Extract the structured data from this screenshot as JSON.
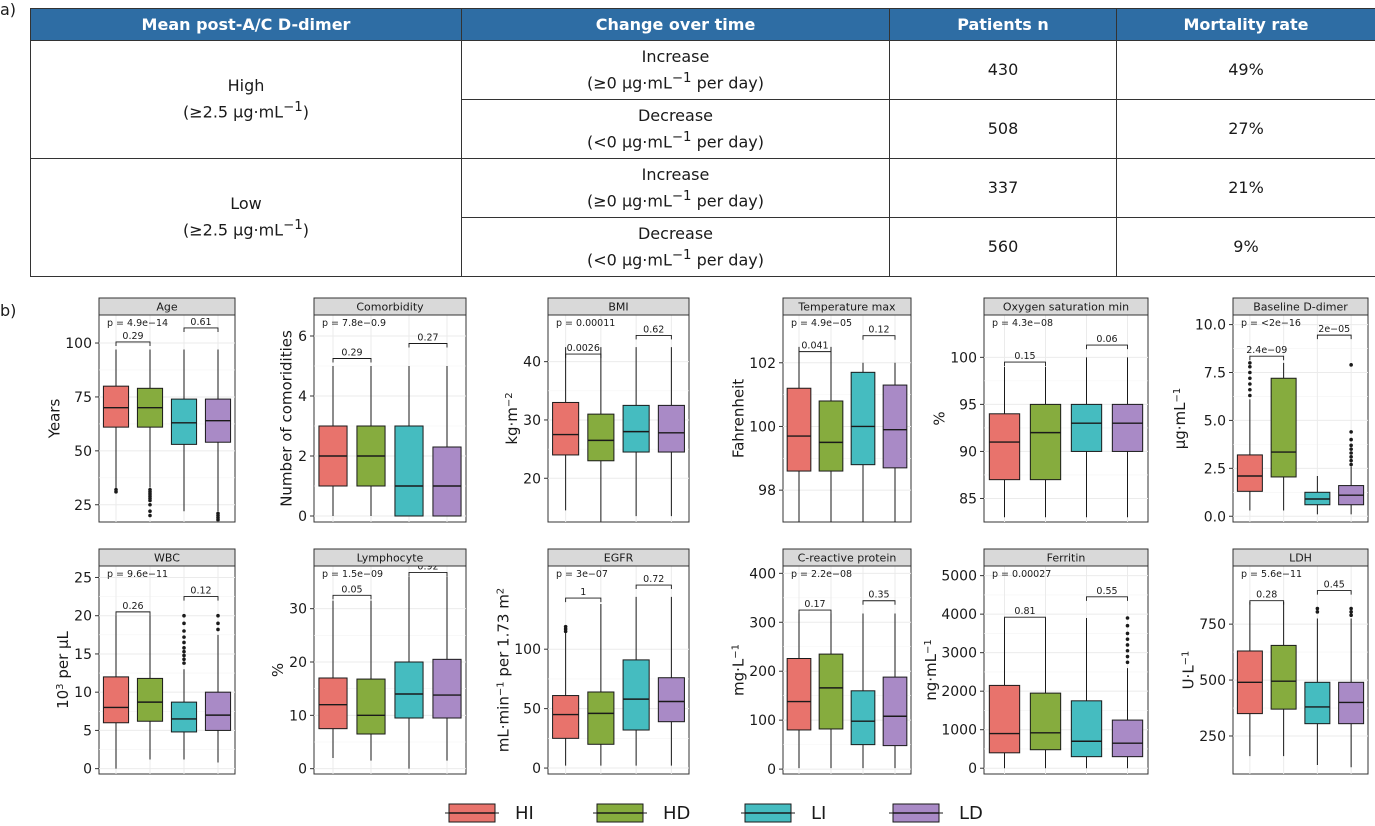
{
  "labels": {
    "panel_a": "a)",
    "panel_b": "b)"
  },
  "table": {
    "headers": [
      "Mean post-A/C D-dimer",
      "Change over time",
      "Patients n",
      "Mortality rate"
    ],
    "rows": [
      {
        "group": "High",
        "group_sub": "(≥2.5 μg·mL",
        "change": "Increase",
        "change_sub": "(≥0 μg·mL",
        "change_tail": "per day)",
        "n": "430",
        "mortality": "49%"
      },
      {
        "group": "",
        "group_sub": "",
        "change": "Decrease",
        "change_sub": "(<0 μg·mL",
        "change_tail": "per day)",
        "n": "508",
        "mortality": "27%"
      },
      {
        "group": "Low",
        "group_sub": "(≥2.5 μg·mL",
        "change": "Increase",
        "change_sub": "(≥0 μg·mL",
        "change_tail": "per day)",
        "n": "337",
        "mortality": "21%"
      },
      {
        "group": "",
        "group_sub": "",
        "change": "Decrease",
        "change_sub": "(<0 μg·mL",
        "change_tail": "per day)",
        "n": "560",
        "mortality": "9%"
      }
    ],
    "superscript": "−1"
  },
  "colors": {
    "HI": "#e8736c",
    "HD": "#86ac3e",
    "LI": "#45bcc0",
    "LD": "#a98ac6"
  },
  "chart_data": [
    {
      "type": "box",
      "title": "Age",
      "ylabel": "Years",
      "ylim": [
        17,
        113
      ],
      "ticks": [
        25,
        50,
        75,
        100
      ],
      "boxes": [
        {
          "group": "HI",
          "q1": 61,
          "median": 70,
          "q3": 80,
          "lo": 32,
          "hi": 97,
          "outliers": [
            31,
            32
          ]
        },
        {
          "group": "HD",
          "q1": 61,
          "median": 70,
          "q3": 79,
          "lo": 33,
          "hi": 97,
          "outliers": [
            20,
            22,
            25,
            27,
            28,
            29,
            30,
            31,
            32
          ]
        },
        {
          "group": "LI",
          "q1": 53,
          "median": 63,
          "q3": 74,
          "lo": 22,
          "hi": 97,
          "outliers": []
        },
        {
          "group": "LD",
          "q1": 54,
          "median": 64,
          "q3": 74,
          "lo": 22,
          "hi": 97,
          "outliers": [
            18,
            19,
            20,
            21
          ]
        }
      ],
      "brackets": [
        {
          "label": "p = 4.9e−14",
          "pos": "top"
        },
        {
          "label": "0.29",
          "from": 0,
          "to": 1,
          "y": 100.5
        },
        {
          "label": "0.61",
          "from": 2,
          "to": 3,
          "y": 107
        }
      ]
    },
    {
      "type": "box",
      "title": "Comorbidity",
      "ylabel": "Number of comoridities",
      "ylim": [
        -0.2,
        6.7
      ],
      "ticks": [
        0,
        2,
        4,
        6
      ],
      "boxes": [
        {
          "group": "HI",
          "q1": 1,
          "median": 2,
          "q3": 3,
          "lo": 0,
          "hi": 5,
          "outliers": []
        },
        {
          "group": "HD",
          "q1": 1,
          "median": 2,
          "q3": 3,
          "lo": 0,
          "hi": 5,
          "outliers": []
        },
        {
          "group": "LI",
          "q1": 0,
          "median": 1,
          "q3": 3,
          "lo": 0,
          "hi": 5,
          "outliers": []
        },
        {
          "group": "LD",
          "q1": 0,
          "median": 1,
          "q3": 2.3,
          "lo": 0,
          "hi": 5,
          "outliers": []
        }
      ],
      "brackets": [
        {
          "label": "p = 7.8e−0.9",
          "pos": "top"
        },
        {
          "label": "0.29",
          "from": 0,
          "to": 1,
          "y": 5.25
        },
        {
          "label": "0.27",
          "from": 2,
          "to": 3,
          "y": 5.75
        }
      ]
    },
    {
      "type": "box",
      "title": "BMI",
      "ylabel": "kg·m",
      "ysup": "−2",
      "ylim": [
        12.5,
        48
      ],
      "ticks": [
        20,
        30,
        40
      ],
      "boxes": [
        {
          "group": "HI",
          "q1": 24,
          "median": 27.5,
          "q3": 33,
          "lo": 14.5,
          "hi": 42.5,
          "outliers": []
        },
        {
          "group": "HD",
          "q1": 23,
          "median": 26.5,
          "q3": 31,
          "lo": 12.5,
          "hi": 42.5,
          "outliers": []
        },
        {
          "group": "LI",
          "q1": 24.5,
          "median": 28,
          "q3": 32.5,
          "lo": 13.5,
          "hi": 42.5,
          "outliers": []
        },
        {
          "group": "LD",
          "q1": 24.5,
          "median": 27.8,
          "q3": 32.5,
          "lo": 13.5,
          "hi": 42.5,
          "outliers": []
        }
      ],
      "brackets": [
        {
          "label": "p = 0.00011",
          "pos": "top"
        },
        {
          "label": "0.0026",
          "from": 0,
          "to": 1,
          "y": 41.3
        },
        {
          "label": "0.62",
          "from": 2,
          "to": 3,
          "y": 44.5
        }
      ]
    },
    {
      "type": "box",
      "title": "Temperature max",
      "ylabel": "Fahrenheit",
      "ylim": [
        97,
        103.5
      ],
      "ticks": [
        98,
        100,
        102
      ],
      "boxes": [
        {
          "group": "HI",
          "q1": 98.6,
          "median": 99.7,
          "q3": 101.2,
          "lo": 97,
          "hi": 102.5,
          "outliers": []
        },
        {
          "group": "HD",
          "q1": 98.6,
          "median": 99.5,
          "q3": 100.8,
          "lo": 97,
          "hi": 102.5,
          "outliers": []
        },
        {
          "group": "LI",
          "q1": 98.8,
          "median": 100,
          "q3": 101.7,
          "lo": 97,
          "hi": 102,
          "outliers": []
        },
        {
          "group": "LD",
          "q1": 98.7,
          "median": 99.9,
          "q3": 101.3,
          "lo": 97,
          "hi": 102,
          "outliers": []
        }
      ],
      "brackets": [
        {
          "label": "p = 4.9e−05",
          "pos": "top"
        },
        {
          "label": "0.041",
          "from": 0,
          "to": 1,
          "y": 102.35
        },
        {
          "label": "0.12",
          "from": 2,
          "to": 3,
          "y": 102.85
        }
      ]
    },
    {
      "type": "box",
      "title": "Oxygen saturation min",
      "ylabel": "%",
      "ylim": [
        82.5,
        104.5
      ],
      "ticks": [
        85,
        90,
        95,
        100
      ],
      "boxes": [
        {
          "group": "HI",
          "q1": 87,
          "median": 91,
          "q3": 94,
          "lo": 83,
          "hi": 99,
          "outliers": []
        },
        {
          "group": "HD",
          "q1": 87,
          "median": 92,
          "q3": 95,
          "lo": 83,
          "hi": 99,
          "outliers": []
        },
        {
          "group": "LI",
          "q1": 90,
          "median": 93,
          "q3": 95,
          "lo": 83,
          "hi": 100,
          "outliers": []
        },
        {
          "group": "LD",
          "q1": 90,
          "median": 93,
          "q3": 95,
          "lo": 83,
          "hi": 100,
          "outliers": []
        }
      ],
      "brackets": [
        {
          "label": "p = 4.3e−08",
          "pos": "top"
        },
        {
          "label": "0.15",
          "from": 0,
          "to": 1,
          "y": 99.5
        },
        {
          "label": "0.06",
          "from": 2,
          "to": 3,
          "y": 101.3
        }
      ]
    },
    {
      "type": "box",
      "title": "Baseline D-dimer",
      "ylabel": "μg·mL",
      "ysup": "−1",
      "ylim": [
        -0.3,
        10.5
      ],
      "ticks": [
        0.0,
        2.5,
        5.0,
        7.5,
        10.0
      ],
      "tickfmt": 1,
      "boxes": [
        {
          "group": "HI",
          "q1": 1.3,
          "median": 2.1,
          "q3": 3.2,
          "lo": 0.3,
          "hi": 6.1,
          "outliers": [
            6.3,
            6.6,
            6.9,
            7.2,
            7.5,
            7.8,
            8
          ]
        },
        {
          "group": "HD",
          "q1": 2.05,
          "median": 3.35,
          "q3": 7.2,
          "lo": 0.3,
          "hi": 8,
          "outliers": []
        },
        {
          "group": "LI",
          "q1": 0.6,
          "median": 0.9,
          "q3": 1.25,
          "lo": 0.1,
          "hi": 2.1,
          "outliers": []
        },
        {
          "group": "LD",
          "q1": 0.6,
          "median": 1.1,
          "q3": 1.6,
          "lo": 0.1,
          "hi": 2.6,
          "outliers": [
            2.7,
            2.9,
            3.1,
            3.3,
            3.5,
            3.7,
            4,
            4.4,
            7.9
          ]
        }
      ],
      "brackets": [
        {
          "label": "p = <2e−16",
          "pos": "top"
        },
        {
          "label": "2.4e−09",
          "from": 0,
          "to": 1,
          "y": 8.35
        },
        {
          "label": "2e−05",
          "from": 2,
          "to": 3,
          "y": 9.45
        }
      ]
    },
    {
      "type": "box",
      "title": "WBC",
      "ylabel": "10",
      "ysup3": "3",
      "ytail": " per μL",
      "ylim": [
        -0.7,
        26.5
      ],
      "ticks": [
        0,
        5,
        10,
        15,
        20,
        25
      ],
      "boxes": [
        {
          "group": "HI",
          "q1": 6,
          "median": 8,
          "q3": 12,
          "lo": 0,
          "hi": 20,
          "outliers": []
        },
        {
          "group": "HD",
          "q1": 6.2,
          "median": 8.7,
          "q3": 11.8,
          "lo": 1.2,
          "hi": 20,
          "outliers": []
        },
        {
          "group": "LI",
          "q1": 4.8,
          "median": 6.5,
          "q3": 8.7,
          "lo": 1.2,
          "hi": 13,
          "outliers": [
            13.8,
            14.3,
            14.8,
            15.3,
            15.8,
            16.5,
            17.2,
            18,
            19,
            20
          ]
        },
        {
          "group": "LD",
          "q1": 5,
          "median": 7,
          "q3": 10,
          "lo": 0.8,
          "hi": 17.5,
          "outliers": [
            18.2,
            19,
            20
          ]
        }
      ],
      "brackets": [
        {
          "label": "p = 9.6e−11",
          "pos": "top"
        },
        {
          "label": "0.26",
          "from": 0,
          "to": 1,
          "y": 20.5
        },
        {
          "label": "0.12",
          "from": 2,
          "to": 3,
          "y": 22.5
        }
      ]
    },
    {
      "type": "box",
      "title": "Lymphocyte",
      "ylabel": "%",
      "ylim": [
        -1,
        38
      ],
      "ticks": [
        0,
        10,
        20,
        30
      ],
      "boxes": [
        {
          "group": "HI",
          "q1": 7.5,
          "median": 12,
          "q3": 17,
          "lo": 2,
          "hi": 31.5,
          "outliers": []
        },
        {
          "group": "HD",
          "q1": 6.5,
          "median": 10,
          "q3": 16.8,
          "lo": 1.5,
          "hi": 31.5,
          "outliers": []
        },
        {
          "group": "LI",
          "q1": 9.5,
          "median": 14,
          "q3": 20,
          "lo": 0,
          "hi": 36,
          "outliers": []
        },
        {
          "group": "LD",
          "q1": 9.5,
          "median": 13.8,
          "q3": 20.5,
          "lo": 1.5,
          "hi": 36,
          "outliers": []
        }
      ],
      "brackets": [
        {
          "label": "p = 1.5e−09",
          "pos": "top"
        },
        {
          "label": "0.05",
          "from": 0,
          "to": 1,
          "y": 32.5
        },
        {
          "label": "0.92",
          "from": 2,
          "to": 3,
          "y": 36.8
        }
      ]
    },
    {
      "type": "box",
      "title": "EGFR",
      "ylabel": "mL·min",
      "ysup": "−1",
      "ytail": " per 1.73 m",
      "ysup2": "2",
      "ylim": [
        -5,
        170
      ],
      "ticks": [
        0,
        50,
        100
      ],
      "boxes": [
        {
          "group": "HI",
          "q1": 25,
          "median": 45,
          "q3": 61,
          "lo": 2,
          "hi": 114,
          "outliers": [
            115,
            117,
            119
          ]
        },
        {
          "group": "HD",
          "q1": 20,
          "median": 46,
          "q3": 64,
          "lo": 2,
          "hi": 138,
          "outliers": []
        },
        {
          "group": "LI",
          "q1": 32,
          "median": 58,
          "q3": 91,
          "lo": 2,
          "hi": 144,
          "outliers": []
        },
        {
          "group": "LD",
          "q1": 39,
          "median": 56,
          "q3": 76,
          "lo": 2,
          "hi": 144,
          "outliers": []
        }
      ],
      "brackets": [
        {
          "label": "p = 3e−07",
          "pos": "top"
        },
        {
          "label": "1",
          "from": 0,
          "to": 1,
          "y": 143
        },
        {
          "label": "0.72",
          "from": 2,
          "to": 3,
          "y": 154
        }
      ]
    },
    {
      "type": "box",
      "title": "C-reactive protein",
      "ylabel": "mg·L",
      "ysup": "−1",
      "ylim": [
        -10,
        415
      ],
      "ticks": [
        0,
        100,
        200,
        300,
        400
      ],
      "boxes": [
        {
          "group": "HI",
          "q1": 80,
          "median": 138,
          "q3": 226,
          "lo": 2,
          "hi": 318,
          "outliers": []
        },
        {
          "group": "HD",
          "q1": 82,
          "median": 166,
          "q3": 235,
          "lo": 2,
          "hi": 318,
          "outliers": []
        },
        {
          "group": "LI",
          "q1": 50,
          "median": 98,
          "q3": 160,
          "lo": 2,
          "hi": 318,
          "outliers": []
        },
        {
          "group": "LD",
          "q1": 48,
          "median": 108,
          "q3": 188,
          "lo": 2,
          "hi": 318,
          "outliers": []
        }
      ],
      "brackets": [
        {
          "label": "p = 2.2e−08",
          "pos": "top"
        },
        {
          "label": "0.17",
          "from": 0,
          "to": 1,
          "y": 325
        },
        {
          "label": "0.35",
          "from": 2,
          "to": 3,
          "y": 344
        }
      ]
    },
    {
      "type": "box",
      "title": "Ferritin",
      "ylabel": "ng·mL",
      "ysup": "−1",
      "ylim": [
        -150,
        5250
      ],
      "ticks": [
        0,
        1000,
        2000,
        3000,
        4000,
        5000
      ],
      "boxes": [
        {
          "group": "HI",
          "q1": 400,
          "median": 900,
          "q3": 2150,
          "lo": 0,
          "hi": 3900,
          "outliers": []
        },
        {
          "group": "HD",
          "q1": 480,
          "median": 920,
          "q3": 1950,
          "lo": 0,
          "hi": 3900,
          "outliers": []
        },
        {
          "group": "LI",
          "q1": 300,
          "median": 700,
          "q3": 1750,
          "lo": 0,
          "hi": 3900,
          "outliers": []
        },
        {
          "group": "LD",
          "q1": 300,
          "median": 650,
          "q3": 1250,
          "lo": 0,
          "hi": 2600,
          "outliers": [
            2750,
            2900,
            3050,
            3200,
            3350,
            3500,
            3700,
            3900
          ]
        }
      ],
      "brackets": [
        {
          "label": "p = 0.00027",
          "pos": "top"
        },
        {
          "label": "0.81",
          "from": 0,
          "to": 1,
          "y": 3920
        },
        {
          "label": "0.55",
          "from": 2,
          "to": 3,
          "y": 4450
        }
      ]
    },
    {
      "type": "box",
      "title": "LDH",
      "ylabel": "U·L",
      "ysup": "−1",
      "ylim": [
        80,
        1010
      ],
      "ticks": [
        250,
        500,
        750
      ],
      "boxes": [
        {
          "group": "HI",
          "q1": 350,
          "median": 490,
          "q3": 630,
          "lo": 160,
          "hi": 850,
          "outliers": []
        },
        {
          "group": "HD",
          "q1": 370,
          "median": 495,
          "q3": 655,
          "lo": 160,
          "hi": 850,
          "outliers": []
        },
        {
          "group": "LI",
          "q1": 305,
          "median": 380,
          "q3": 490,
          "lo": 120,
          "hi": 775,
          "outliers": [
            805,
            820
          ]
        },
        {
          "group": "LD",
          "q1": 305,
          "median": 400,
          "q3": 490,
          "lo": 110,
          "hi": 775,
          "outliers": [
            790,
            805,
            820
          ]
        }
      ],
      "brackets": [
        {
          "label": "p = 5.6e−11",
          "pos": "top"
        },
        {
          "label": "0.28",
          "from": 0,
          "to": 1,
          "y": 855
        },
        {
          "label": "0.45",
          "from": 2,
          "to": 3,
          "y": 900
        }
      ]
    }
  ],
  "legend": {
    "items": [
      "HI",
      "HD",
      "LI",
      "LD"
    ]
  }
}
